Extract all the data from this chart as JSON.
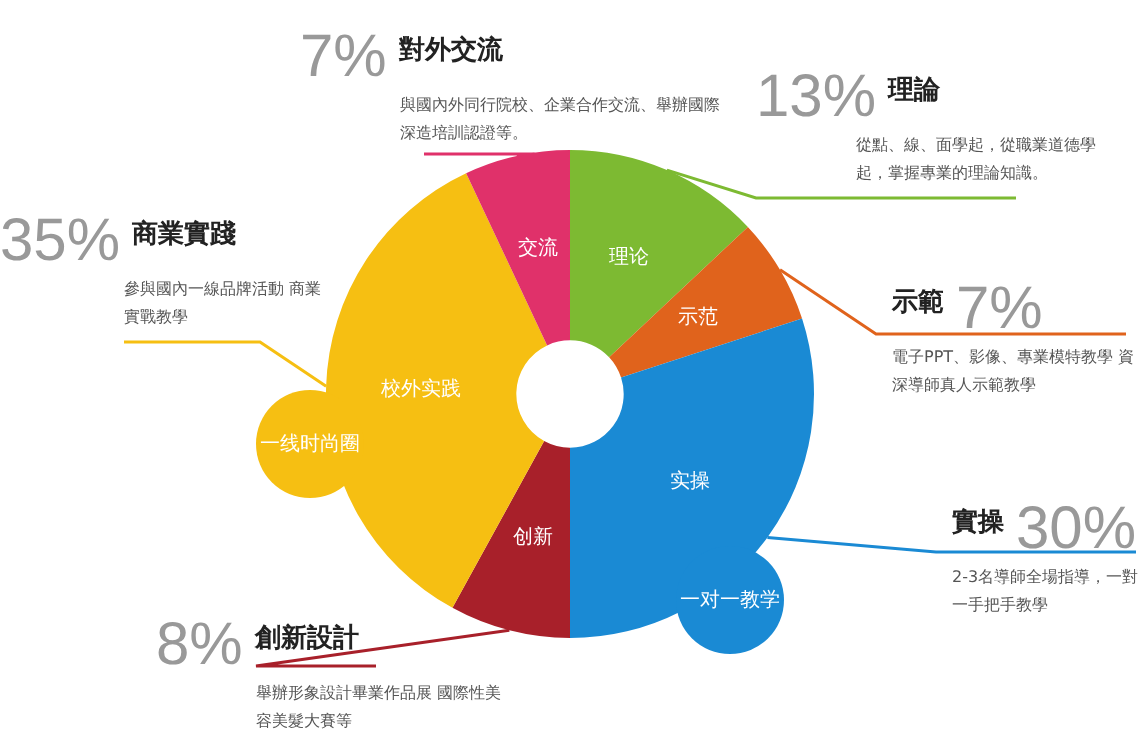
{
  "chart_data": {
    "type": "donut",
    "categories": [
      "理論",
      "示範",
      "實操",
      "創新設計",
      "商業實踐",
      "對外交流"
    ],
    "values": [
      13,
      7,
      30,
      8,
      35,
      7
    ],
    "colors": [
      "#7dba32",
      "#e0631c",
      "#1a8ad4",
      "#a8202a",
      "#f6bf12",
      "#e0316a"
    ],
    "value_labels": [
      "13%",
      "7%",
      "30%",
      "8%",
      "35%",
      "7%"
    ],
    "legend": false,
    "annotations": [
      "從點、線、面學起，從職業道德學起，掌握專業的理論知識。",
      "電子PPT、影像、專業模特教學 資深導師真人示範教學",
      "2-3名導師全場指導，一對一手把手教學",
      "舉辦形象設計畢業作品展 國際性美容美髮大賽等",
      "參與國內一線品牌活動 商業實戰教學",
      "與國內外同行院校、企業合作交流、舉辦國際深造培訓認證等。",
      "理论",
      "示范",
      "实操",
      "创新",
      "校外实践",
      "交流",
      "一线时尚圈",
      "一对一教学"
    ]
  }
}
